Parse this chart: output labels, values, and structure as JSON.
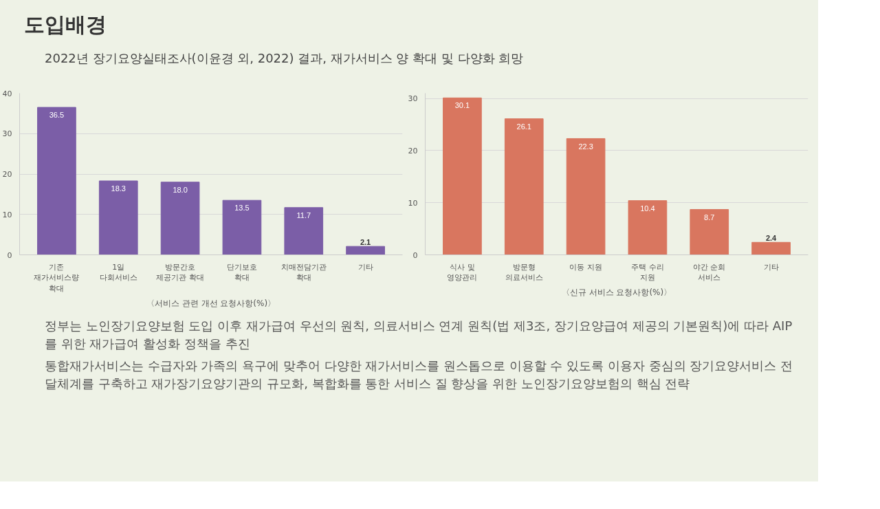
{
  "chart_data": [
    {
      "type": "bar",
      "title": "도입배경",
      "subtitle": "2022년 장기요양실태조사(이윤경 외, 2022) 결과, 재가서비스 양 확대 및 다양화 희망",
      "xlabel": "〈서비스 관련 개선 요청사항(%)〉",
      "categories": [
        "기존\n재가서비스량\n확대",
        "1일\n다회서비스",
        "방문간호\n제공기관 확대",
        "단기보호\n확대",
        "치매전담기관\n확대",
        "기타"
      ],
      "values": [
        36.5,
        18.3,
        18.0,
        13.5,
        11.7,
        2.1
      ],
      "value_labels": [
        "36.5",
        "18.3",
        "18.0",
        "13.5",
        "11.7",
        "2.1"
      ],
      "color": "#7b5ea7",
      "ylim": [
        0,
        40
      ],
      "yticks": [
        0,
        10,
        20,
        30,
        40
      ],
      "grid": "y"
    },
    {
      "type": "bar",
      "xlabel": "〈신규 서비스 요청사항(%)〉",
      "categories": [
        "식사 및\n영양관리",
        "방문형\n의료서비스",
        "이동 지원",
        "주택 수리\n지원",
        "야간 순회\n서비스",
        "기타"
      ],
      "values": [
        30.1,
        26.1,
        22.3,
        10.4,
        8.7,
        2.4
      ],
      "value_labels": [
        "30.1",
        "26.1",
        "22.3",
        "10.4",
        "8.7",
        "2.4"
      ],
      "color": "#d9765f",
      "ylim": [
        0,
        31
      ],
      "yticks": [
        0,
        10,
        20,
        30
      ],
      "grid": "y",
      "annotations": [
        "정부는 노인장기요양보험 도입 이후 재가급여 우선의 원칙, 의료서비스 연계 원칙(법 제3조, 장기요양급여 제공의 기본원칙)에 따라 AIP를 위한 재가급여 활성화 정책을 추진",
        "통합재가서비스는 수급자와 가족의 욕구에 맞추어 다양한 재가서비스를 원스톱으로 이용할 수 있도록 이용자 중심의 장기요양서비스 전달체계를 구축하고 재가장기요양기관의 규모화, 복합화를 통한 서비스 질 향상을 위한 노인장기요양보험의 핵심 전략"
      ]
    }
  ]
}
